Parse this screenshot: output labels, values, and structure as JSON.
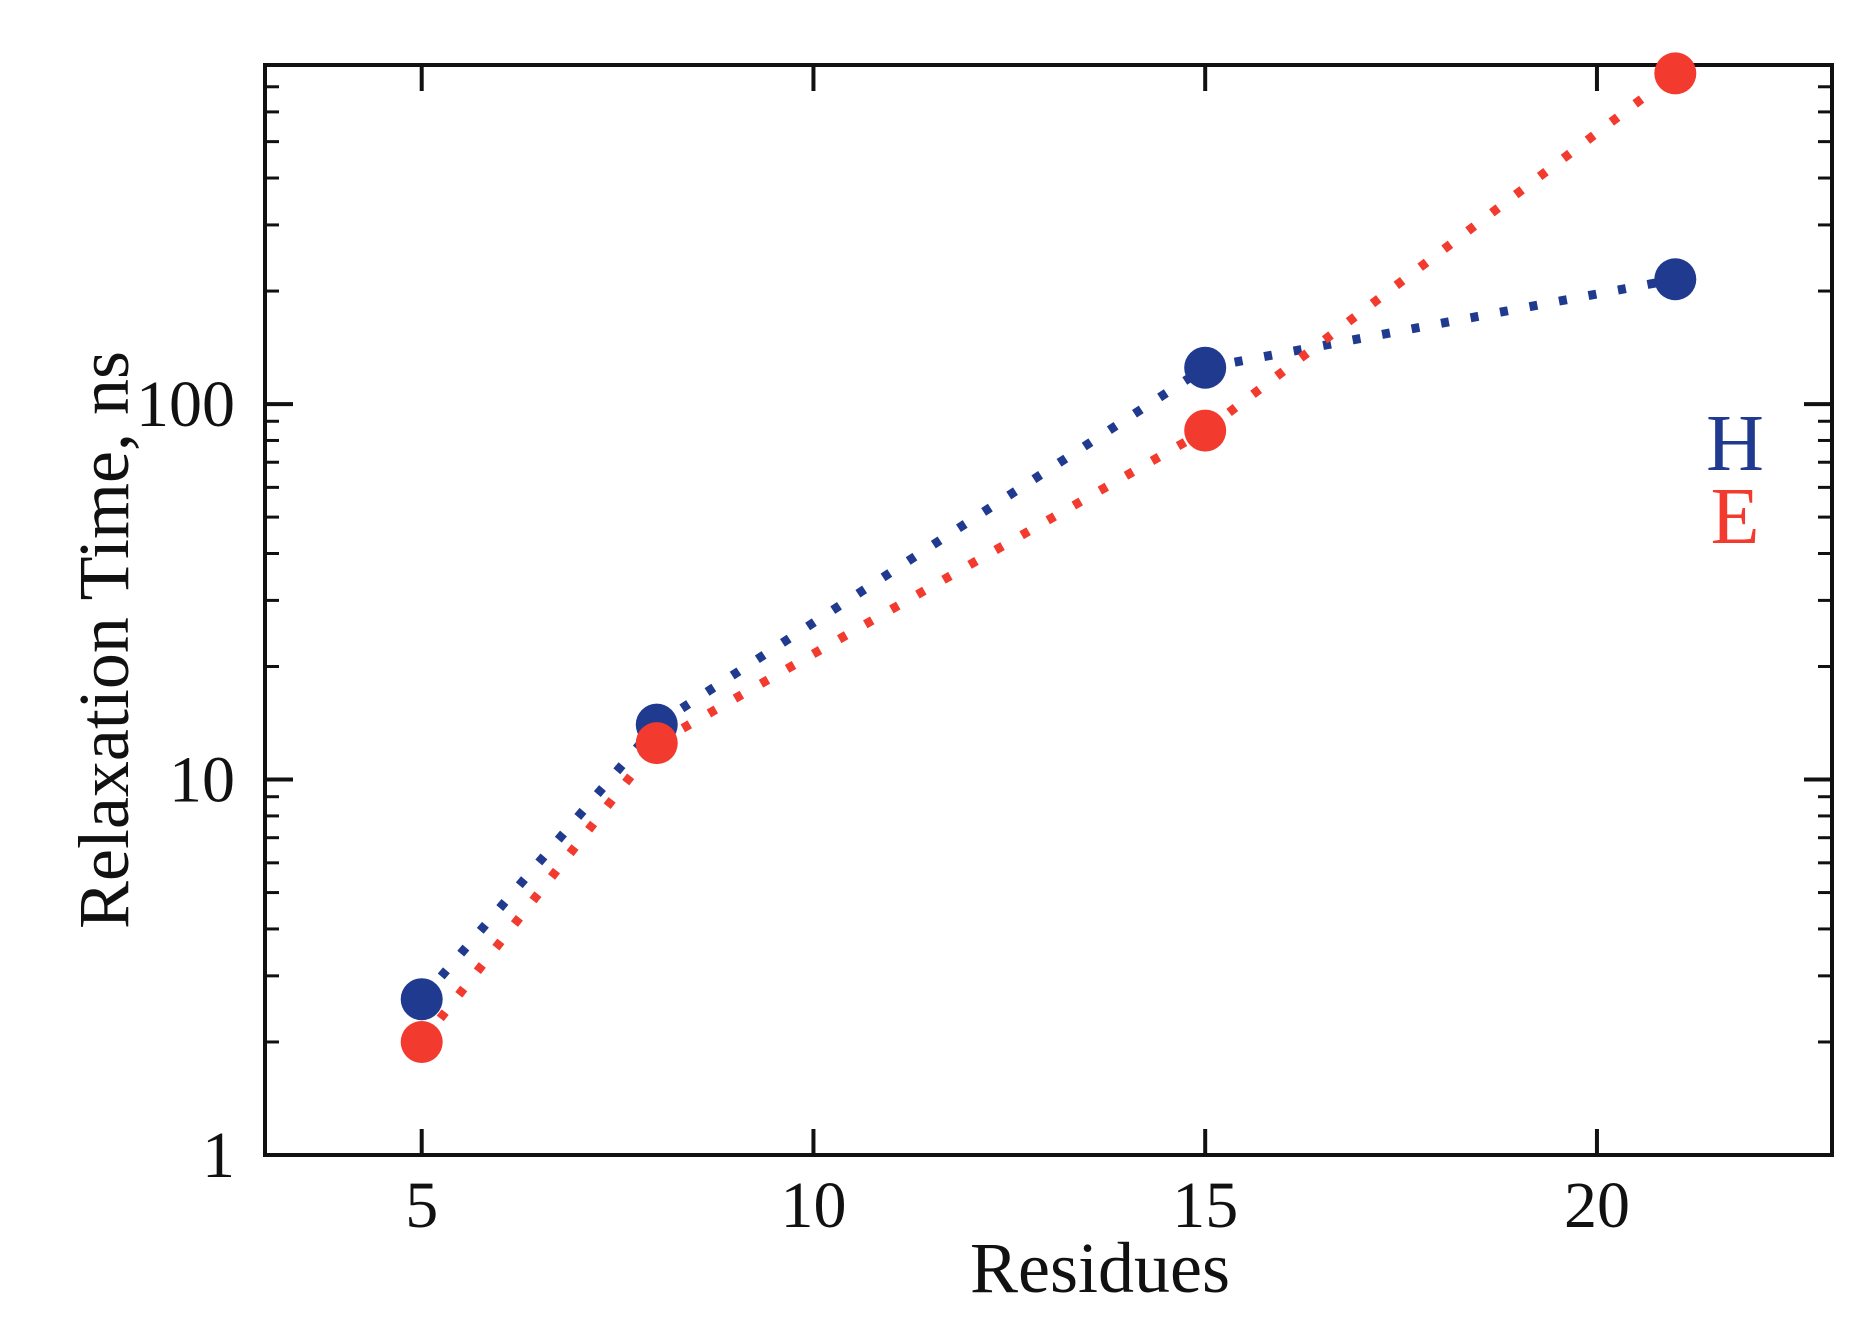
{
  "chart_data": {
    "type": "line",
    "title": "",
    "xlabel": "Residues",
    "ylabel": "Relaxation Time, ns",
    "yscale": "log",
    "xlim": [
      3,
      23
    ],
    "ylim": [
      1,
      800
    ],
    "x_ticks": [
      5,
      10,
      15,
      20
    ],
    "x_tick_labels": [
      "5",
      "10",
      "15",
      "20"
    ],
    "y_ticks": [
      1,
      10,
      100
    ],
    "y_tick_labels": [
      "1",
      "10",
      "100"
    ],
    "grid": false,
    "legend_position": "right",
    "series": [
      {
        "name": "H",
        "color": "#1f3a8f",
        "x": [
          5,
          8,
          15,
          21
        ],
        "values": [
          2.6,
          14,
          125,
          215
        ]
      },
      {
        "name": "E",
        "color": "#f23a2e",
        "x": [
          5,
          8,
          15,
          21
        ],
        "values": [
          2.0,
          12.5,
          85,
          760
        ]
      }
    ]
  }
}
